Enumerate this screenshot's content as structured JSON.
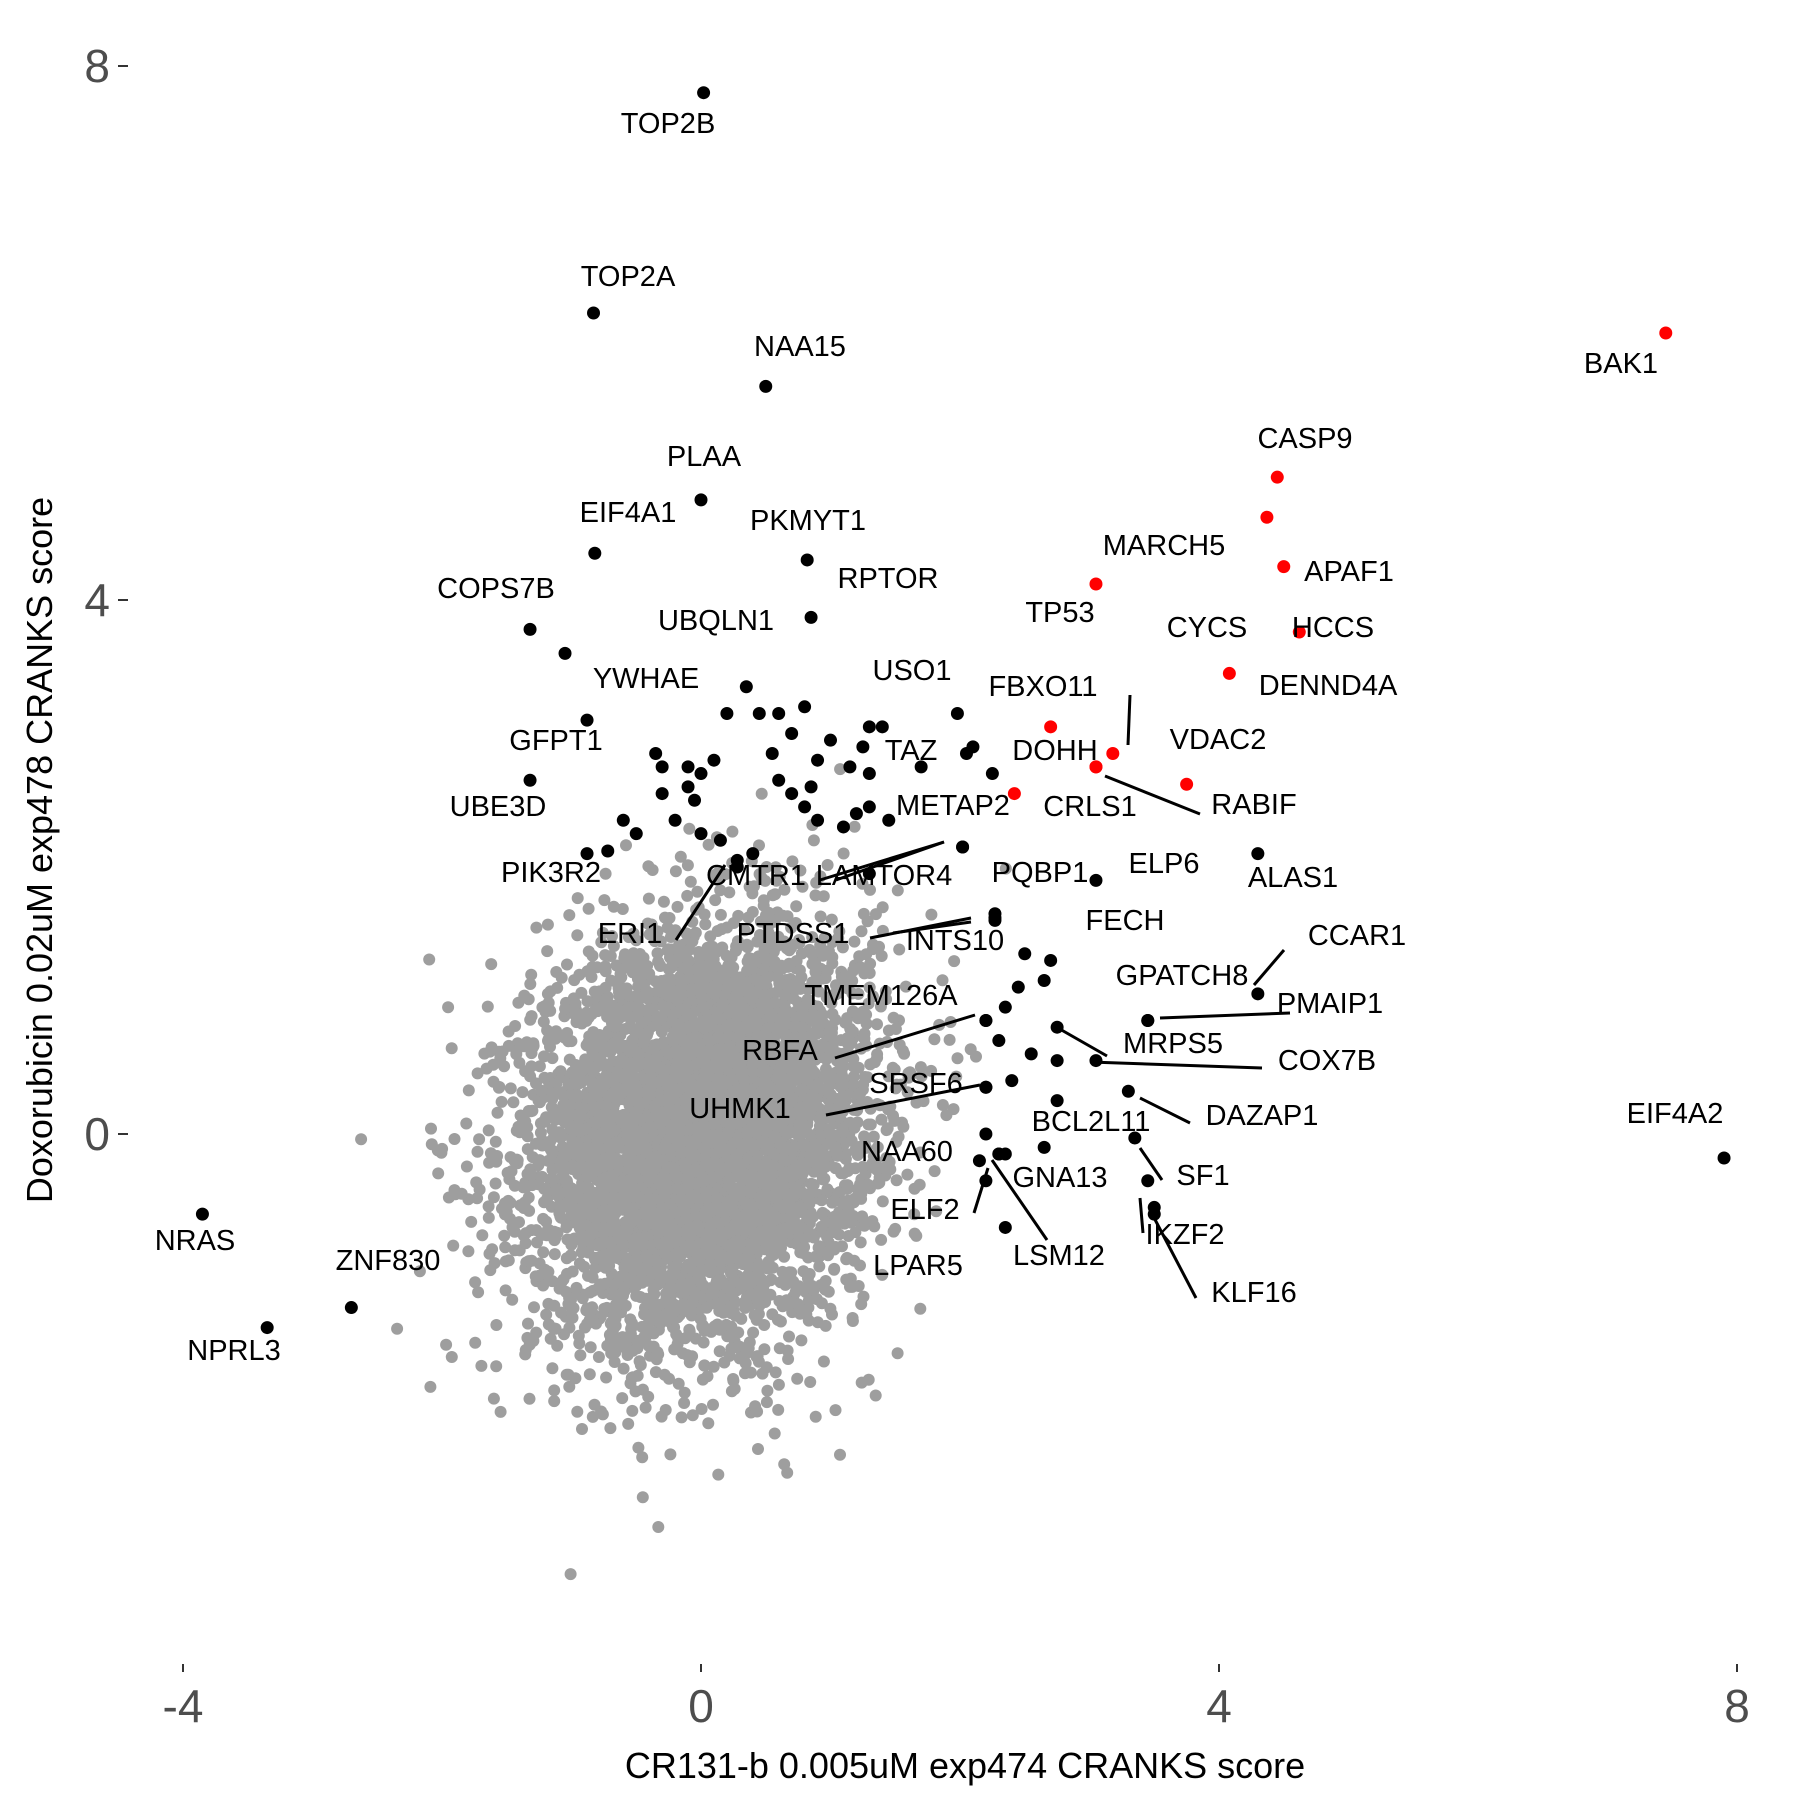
{
  "chart_data": {
    "type": "scatter",
    "xlabel": "CR131-b 0.005uM exp474 CRANKS score",
    "ylabel": "Doxorubicin 0.02uM exp478 CRANKS score",
    "xlim": [
      -4.5,
      8.3
    ],
    "ylim": [
      -4.0,
      8.3
    ],
    "x_ticks": [
      -4,
      0,
      4,
      8
    ],
    "y_ticks": [
      0,
      4,
      8
    ],
    "x_tick_labels": [
      "-4",
      "0",
      "4",
      "8"
    ],
    "y_tick_labels": [
      "0",
      "4",
      "8"
    ],
    "grid": false,
    "colors": {
      "background": "#9e9e9e",
      "highlight": "#000000",
      "apoptosis": "#ff0000"
    },
    "background_cloud": {
      "description_color": "gray",
      "x_mean": 0,
      "x_sd": 0.65,
      "y_mean": 0,
      "y_sd": 0.75,
      "n": 6000
    },
    "points": [
      {
        "label": "TOP2B",
        "x": 0.02,
        "y": 7.8,
        "color": "black"
      },
      {
        "label": "TOP2A",
        "x": -0.83,
        "y": 6.15,
        "color": "black"
      },
      {
        "label": "NAA15",
        "x": 0.5,
        "y": 5.6,
        "color": "black"
      },
      {
        "label": "PLAA",
        "x": 0.0,
        "y": 4.75,
        "color": "black"
      },
      {
        "label": "EIF4A1",
        "x": -0.82,
        "y": 4.35,
        "color": "black"
      },
      {
        "label": "PKMYT1",
        "x": 0.82,
        "y": 4.3,
        "color": "black"
      },
      {
        "label": "RPTOR",
        "x": 0.85,
        "y": 3.87,
        "color": "black"
      },
      {
        "label": "COPS7B",
        "x": -1.32,
        "y": 3.78,
        "color": "black"
      },
      {
        "label": "UBQLN1",
        "x": -1.05,
        "y": 3.6,
        "color": "black"
      },
      {
        "label": "YWHAE",
        "x": -0.88,
        "y": 3.1,
        "color": "black"
      },
      {
        "label": "GFPT1",
        "x": -1.32,
        "y": 2.65,
        "color": "black"
      },
      {
        "label": "UBE3D",
        "x": -0.88,
        "y": 2.1,
        "color": "black"
      },
      {
        "label": "PIK3R2",
        "x": -0.72,
        "y": 2.12,
        "color": "black"
      },
      {
        "label": "USO1",
        "x": 1.98,
        "y": 3.15,
        "color": "black"
      },
      {
        "label": "TAZ",
        "x": 2.1,
        "y": 2.9,
        "color": "black"
      },
      {
        "label": "METAP2",
        "x": 2.02,
        "y": 2.15,
        "color": "black"
      },
      {
        "label": "LAMTOR4",
        "x": 2.02,
        "y": 2.15,
        "color": "black"
      },
      {
        "label": "CMTR1",
        "x": 0.28,
        "y": 2.05,
        "color": "black"
      },
      {
        "label": "ERI1",
        "x": 0.28,
        "y": 2.0,
        "color": "black"
      },
      {
        "label": "PQBP1",
        "x": 2.27,
        "y": 1.65,
        "color": "black"
      },
      {
        "label": "PTDSS1",
        "x": 2.27,
        "y": 1.62,
        "color": "black"
      },
      {
        "label": "INTS10",
        "x": 2.27,
        "y": 1.6,
        "color": "black"
      },
      {
        "label": "ELP6",
        "x": 3.05,
        "y": 1.9,
        "color": "black"
      },
      {
        "label": "ALAS1",
        "x": 4.3,
        "y": 2.1,
        "color": "black"
      },
      {
        "label": "FECH",
        "x": 2.7,
        "y": 1.3,
        "color": "black"
      },
      {
        "label": "CCAR1",
        "x": 4.3,
        "y": 1.05,
        "color": "black"
      },
      {
        "label": "GPATCH8",
        "x": 3.45,
        "y": 0.85,
        "color": "black"
      },
      {
        "label": "PMAIP1",
        "x": 3.45,
        "y": 0.85,
        "color": "black"
      },
      {
        "label": "TMEM126A",
        "x": 2.2,
        "y": 0.85,
        "color": "black"
      },
      {
        "label": "RBFA",
        "x": 2.2,
        "y": 0.85,
        "color": "black"
      },
      {
        "label": "MRPS5",
        "x": 2.75,
        "y": 0.8,
        "color": "black"
      },
      {
        "label": "COX7B",
        "x": 3.05,
        "y": 0.55,
        "color": "black"
      },
      {
        "label": "SRSF6",
        "x": 2.2,
        "y": 0.35,
        "color": "black"
      },
      {
        "label": "UHMK1",
        "x": 2.2,
        "y": 0.35,
        "color": "black"
      },
      {
        "label": "DAZAP1",
        "x": 3.3,
        "y": 0.32,
        "color": "black"
      },
      {
        "label": "BCL2L11",
        "x": 3.35,
        "y": -0.03,
        "color": "black"
      },
      {
        "label": "NAA60",
        "x": 2.3,
        "y": -0.15,
        "color": "black"
      },
      {
        "label": "SF1",
        "x": 3.45,
        "y": -0.35,
        "color": "black"
      },
      {
        "label": "GNA13",
        "x": 2.35,
        "y": -0.15,
        "color": "black"
      },
      {
        "label": "ELF2",
        "x": 2.2,
        "y": -0.35,
        "color": "black"
      },
      {
        "label": "LSM12",
        "x": 2.35,
        "y": -0.7,
        "color": "black"
      },
      {
        "label": "IKZF2",
        "x": 3.5,
        "y": -0.55,
        "color": "black"
      },
      {
        "label": "KLF16",
        "x": 3.5,
        "y": -0.6,
        "color": "black"
      },
      {
        "label": "LPAR5",
        "x": 2.15,
        "y": -0.2,
        "color": "black"
      },
      {
        "label": "EIF4A2",
        "x": 7.9,
        "y": -0.18,
        "color": "black"
      },
      {
        "label": "NRAS",
        "x": -3.85,
        "y": -0.6,
        "color": "black"
      },
      {
        "label": "ZNF830",
        "x": -2.7,
        "y": -1.3,
        "color": "black"
      },
      {
        "label": "NPRL3",
        "x": -3.35,
        "y": -1.45,
        "color": "black"
      },
      {
        "label": "BAK1",
        "x": 7.45,
        "y": 6.0,
        "color": "red"
      },
      {
        "label": "CASP9",
        "x": 4.45,
        "y": 4.92,
        "color": "red"
      },
      {
        "label": "MARCH5",
        "x": 4.37,
        "y": 4.62,
        "color": "red"
      },
      {
        "label": "APAF1",
        "x": 4.5,
        "y": 4.25,
        "color": "red"
      },
      {
        "label": "TP53",
        "x": 3.05,
        "y": 4.12,
        "color": "red"
      },
      {
        "label": "HCCS",
        "x": 4.62,
        "y": 3.76,
        "color": "red"
      },
      {
        "label": "CYCS",
        "x": 4.08,
        "y": 3.45,
        "color": "red"
      },
      {
        "label": "FBXO11",
        "x": 2.7,
        "y": 3.05,
        "color": "red"
      },
      {
        "label": "DENND4A",
        "x": 3.18,
        "y": 2.85,
        "color": "red"
      },
      {
        "label": "DOHH",
        "x": 3.05,
        "y": 2.75,
        "color": "red"
      },
      {
        "label": "VDAC2",
        "x": 3.75,
        "y": 2.62,
        "color": "red"
      },
      {
        "label": "RABIF",
        "x": 3.05,
        "y": 2.75,
        "color": "red"
      },
      {
        "label": "CRLS1",
        "x": 2.42,
        "y": 2.55,
        "color": "red"
      }
    ],
    "extra_black_points": [
      {
        "x": 0.35,
        "y": 3.35
      },
      {
        "x": 0.2,
        "y": 3.15
      },
      {
        "x": 0.45,
        "y": 3.15
      },
      {
        "x": 0.6,
        "y": 3.15
      },
      {
        "x": 0.7,
        "y": 3.0
      },
      {
        "x": 0.8,
        "y": 3.2
      },
      {
        "x": 1.3,
        "y": 3.05
      },
      {
        "x": 1.4,
        "y": 3.05
      },
      {
        "x": 1.0,
        "y": 2.95
      },
      {
        "x": 1.25,
        "y": 2.9
      },
      {
        "x": 0.55,
        "y": 2.85
      },
      {
        "x": 0.9,
        "y": 2.8
      },
      {
        "x": 1.15,
        "y": 2.75
      },
      {
        "x": 1.3,
        "y": 2.7
      },
      {
        "x": 0.1,
        "y": 2.8
      },
      {
        "x": -0.35,
        "y": 2.85
      },
      {
        "x": -0.3,
        "y": 2.75
      },
      {
        "x": -0.1,
        "y": 2.75
      },
      {
        "x": 0.0,
        "y": 2.7
      },
      {
        "x": 0.6,
        "y": 2.65
      },
      {
        "x": 0.7,
        "y": 2.55
      },
      {
        "x": 0.85,
        "y": 2.6
      },
      {
        "x": 0.9,
        "y": 2.35
      },
      {
        "x": 1.2,
        "y": 2.4
      },
      {
        "x": 1.3,
        "y": 2.45
      },
      {
        "x": 1.1,
        "y": 2.3
      },
      {
        "x": 1.45,
        "y": 2.35
      },
      {
        "x": -0.3,
        "y": 2.55
      },
      {
        "x": -0.1,
        "y": 2.6
      },
      {
        "x": -0.05,
        "y": 2.5
      },
      {
        "x": -0.6,
        "y": 2.35
      },
      {
        "x": -0.5,
        "y": 2.25
      },
      {
        "x": -0.2,
        "y": 2.35
      },
      {
        "x": 0.0,
        "y": 2.25
      },
      {
        "x": 0.15,
        "y": 2.2
      },
      {
        "x": 0.4,
        "y": 2.1
      },
      {
        "x": 0.8,
        "y": 2.45
      },
      {
        "x": 2.25,
        "y": 2.7
      },
      {
        "x": 2.05,
        "y": 2.85
      },
      {
        "x": 1.7,
        "y": 2.75
      },
      {
        "x": 1.3,
        "y": 1.95
      },
      {
        "x": 2.5,
        "y": 1.35
      },
      {
        "x": 2.45,
        "y": 1.1
      },
      {
        "x": 2.65,
        "y": 1.15
      },
      {
        "x": 2.35,
        "y": 0.95
      },
      {
        "x": 2.55,
        "y": 0.6
      },
      {
        "x": 2.75,
        "y": 0.55
      },
      {
        "x": 2.3,
        "y": 0.7
      },
      {
        "x": 2.4,
        "y": 0.4
      },
      {
        "x": 2.75,
        "y": 0.25
      },
      {
        "x": 2.65,
        "y": -0.1
      },
      {
        "x": 2.2,
        "y": 0.0
      },
      {
        "x": 2.3,
        "y": -0.15
      }
    ]
  }
}
